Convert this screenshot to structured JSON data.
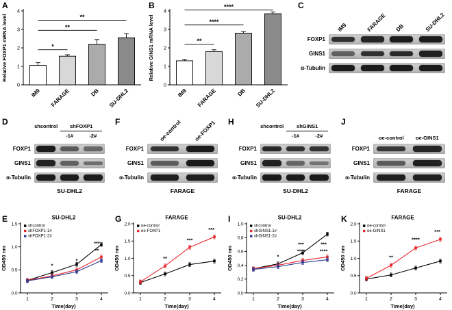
{
  "colors": {
    "red": "#e8262d",
    "blue": "#2b3990",
    "black": "#000000",
    "bar_outline": "#000000"
  },
  "panels": {
    "A": {
      "letter": "A"
    },
    "B": {
      "letter": "B"
    },
    "C": {
      "letter": "C"
    },
    "D": {
      "letter": "D"
    },
    "E": {
      "letter": "E"
    },
    "F": {
      "letter": "F"
    },
    "G": {
      "letter": "G"
    },
    "H": {
      "letter": "H"
    },
    "I": {
      "letter": "I"
    },
    "J": {
      "letter": "J"
    },
    "K": {
      "letter": "K"
    }
  },
  "blots": [
    {
      "id": "C",
      "header": "rotated",
      "columns": [
        "IM9",
        "FARAGE",
        "DB",
        "SU-DHL2"
      ],
      "rows": [
        {
          "label": "FOXP1",
          "bands": [
            0.8,
            0.88,
            0.95,
            0.95
          ]
        },
        {
          "label": "GINS1",
          "bands": [
            0.45,
            0.8,
            0.85,
            0.92
          ]
        },
        {
          "label": "α-Tubulin",
          "bands": [
            0.95,
            0.95,
            0.95,
            0.95
          ]
        }
      ],
      "bottom_label": ""
    },
    {
      "id": "D",
      "header": "grouped",
      "left_col": "shcontrol",
      "group_label": "shFOXP1",
      "sub_cols": [
        "-1#",
        "-2#"
      ],
      "rows": [
        {
          "label": "FOXP1",
          "bands": [
            0.95,
            0.5,
            0.4
          ]
        },
        {
          "label": "GINS1",
          "bands": [
            0.9,
            0.45,
            0.36
          ]
        },
        {
          "label": "α-Tubulin",
          "bands": [
            0.95,
            0.95,
            0.95
          ]
        }
      ],
      "bottom_label": "SU-DHL2"
    },
    {
      "id": "F",
      "header": "rotated",
      "columns": [
        "oe-control",
        "oe-FOXP1"
      ],
      "rows": [
        {
          "label": "FOXP1",
          "bands": [
            0.78,
            0.95
          ]
        },
        {
          "label": "GINS1",
          "bands": [
            0.5,
            0.95
          ]
        },
        {
          "label": "α-Tubulin",
          "bands": [
            0.92,
            0.92
          ]
        }
      ],
      "bottom_label": "FARAGE"
    },
    {
      "id": "H",
      "header": "grouped",
      "left_col": "shcontrol",
      "group_label": "shGINS1",
      "sub_cols": [
        "-1#",
        "-2#"
      ],
      "rows": [
        {
          "label": "FOXP1",
          "bands": [
            0.85,
            0.8,
            0.78
          ]
        },
        {
          "label": "GINS1",
          "bands": [
            0.9,
            0.42,
            0.32
          ]
        },
        {
          "label": "α-Tubulin",
          "bands": [
            0.95,
            0.95,
            0.95
          ]
        }
      ],
      "bottom_label": "SU-DHL2"
    },
    {
      "id": "J",
      "header": "plain",
      "columns": [
        "oe-control",
        "oe-GINS1"
      ],
      "rows": [
        {
          "label": "FOXP1",
          "bands": [
            0.75,
            0.88
          ]
        },
        {
          "label": "GINS1",
          "bands": [
            0.5,
            0.92
          ]
        },
        {
          "label": "α-Tubulin",
          "bands": [
            0.92,
            0.92
          ]
        }
      ],
      "bottom_label": "FARAGE"
    }
  ],
  "chart_data": [
    {
      "panel": "A",
      "type": "bar",
      "categories": [
        "IM9",
        "FARAGE",
        "DB",
        "SU-DHL2"
      ],
      "values": [
        1.05,
        1.55,
        2.2,
        2.55
      ],
      "errors": [
        0.15,
        0.08,
        0.25,
        0.22
      ],
      "ylabel": "Relative FOXP1 mRNA level",
      "ylim": [
        0,
        4
      ],
      "yticks": [
        "0",
        "1",
        "2",
        "3",
        "4"
      ],
      "bar_colors": [
        "#ffffff",
        "#d8d8d8",
        "#ababab",
        "#8a8a8a"
      ],
      "significance": [
        {
          "from": 0,
          "to": 1,
          "label": "*",
          "level": 1.9
        },
        {
          "from": 0,
          "to": 2,
          "label": "**",
          "level": 2.95
        },
        {
          "from": 0,
          "to": 3,
          "label": "**",
          "level": 3.5
        }
      ]
    },
    {
      "panel": "B",
      "type": "bar",
      "categories": [
        "IM9",
        "FARAGE",
        "DB",
        "SU-DHL2"
      ],
      "values": [
        1.3,
        1.8,
        2.8,
        3.85
      ],
      "errors": [
        0.07,
        0.1,
        0.08,
        0.1
      ],
      "ylabel": "Relative GINS1 mRNA level",
      "ylim": [
        0,
        4
      ],
      "yticks": [
        "0",
        "1",
        "2",
        "3",
        "4"
      ],
      "bar_colors": [
        "#ffffff",
        "#d8d8d8",
        "#ababab",
        "#8a8a8a"
      ],
      "significance": [
        {
          "from": 0,
          "to": 1,
          "label": "**",
          "level": 2.2
        },
        {
          "from": 0,
          "to": 2,
          "label": "****",
          "level": 3.25
        },
        {
          "from": 0,
          "to": 3,
          "label": "****",
          "level": 4.05
        }
      ]
    },
    {
      "panel": "E",
      "type": "line",
      "title": "SU-DHL2",
      "x": [
        1,
        2,
        3,
        4
      ],
      "xlabel": "Time(day)",
      "ylabel": "OD450 nm",
      "ylim": [
        0,
        1.5
      ],
      "yticks": [
        "0.0",
        "0.5",
        "1.0",
        "1.5"
      ],
      "series": [
        {
          "name": "shcontrol",
          "color": "#000000",
          "values": [
            0.27,
            0.44,
            0.62,
            1.05
          ]
        },
        {
          "name": "shFOXP1-1#",
          "color": "#e8262d",
          "values": [
            0.27,
            0.37,
            0.5,
            0.78
          ]
        },
        {
          "name": "shFOXP1-2#",
          "color": "#2b3990",
          "values": [
            0.26,
            0.35,
            0.46,
            0.7
          ]
        }
      ],
      "annotations": [
        {
          "x": 2,
          "y": 0.56,
          "text": "*",
          "color": "#e8262d"
        },
        {
          "x": 3,
          "y": 0.66,
          "text": "*",
          "color": "#e8262d"
        },
        {
          "x": 3.82,
          "y": 1.04,
          "text": "***",
          "color": "#e8262d"
        },
        {
          "x": 3.82,
          "y": 0.88,
          "text": "**",
          "color": "#2b3990"
        }
      ]
    },
    {
      "panel": "G",
      "type": "line",
      "title": "FARAGE",
      "x": [
        1,
        2,
        3,
        4
      ],
      "xlabel": "Time(day)",
      "ylabel": "OD450 nm",
      "ylim": [
        0,
        2
      ],
      "yticks": [
        "0.0",
        "0.5",
        "1.0",
        "1.5",
        "2.0"
      ],
      "series": [
        {
          "name": "oe-control",
          "color": "#000000",
          "values": [
            0.3,
            0.55,
            0.82,
            0.92
          ]
        },
        {
          "name": "oe-FOXP1",
          "color": "#e8262d",
          "values": [
            0.32,
            0.78,
            1.32,
            1.62
          ]
        }
      ],
      "annotations": [
        {
          "x": 2,
          "y": 0.95,
          "text": "**",
          "color": "#e8262d"
        },
        {
          "x": 3,
          "y": 1.48,
          "text": "***",
          "color": "#e8262d"
        },
        {
          "x": 3.88,
          "y": 1.78,
          "text": "***",
          "color": "#e8262d"
        }
      ]
    },
    {
      "panel": "I",
      "type": "line",
      "title": "SU-DHL2",
      "x": [
        1,
        2,
        3,
        4
      ],
      "xlabel": "Time(day)",
      "ylabel": "OD450 nm",
      "ylim": [
        0,
        1.0
      ],
      "yticks": [
        "0.0",
        "0.2",
        "0.4",
        "0.6",
        "0.8",
        "1.0"
      ],
      "series": [
        {
          "name": "shcontrol",
          "color": "#000000",
          "values": [
            0.35,
            0.42,
            0.58,
            0.85
          ]
        },
        {
          "name": "shGINS1-1#",
          "color": "#e8262d",
          "values": [
            0.35,
            0.4,
            0.47,
            0.52
          ]
        },
        {
          "name": "shGINS1-2#",
          "color": "#2b3990",
          "values": [
            0.34,
            0.38,
            0.44,
            0.48
          ]
        }
      ],
      "annotations": [
        {
          "x": 2,
          "y": 0.5,
          "text": "*",
          "color": "#e8262d"
        },
        {
          "x": 2.93,
          "y": 0.68,
          "text": "***",
          "color": "#e8262d"
        },
        {
          "x": 2.93,
          "y": 0.58,
          "text": "****",
          "color": "#2b3990"
        },
        {
          "x": 3.85,
          "y": 0.68,
          "text": "***",
          "color": "#e8262d"
        },
        {
          "x": 3.85,
          "y": 0.58,
          "text": "****",
          "color": "#2b3990"
        }
      ]
    },
    {
      "panel": "K",
      "type": "line",
      "title": "FARAGE",
      "x": [
        1,
        2,
        3,
        4
      ],
      "xlabel": "Time(day)",
      "ylabel": "OD450 nm",
      "ylim": [
        0,
        2
      ],
      "yticks": [
        "0.0",
        "0.5",
        "1.0",
        "1.5",
        "2.0"
      ],
      "series": [
        {
          "name": "oe-control",
          "color": "#000000",
          "values": [
            0.4,
            0.52,
            0.72,
            0.92
          ]
        },
        {
          "name": "oe-GINS1",
          "color": "#e8262d",
          "values": [
            0.42,
            0.8,
            1.3,
            1.55
          ]
        }
      ],
      "annotations": [
        {
          "x": 2,
          "y": 0.98,
          "text": "**",
          "color": "#e8262d"
        },
        {
          "x": 3,
          "y": 1.5,
          "text": "****",
          "color": "#e8262d"
        },
        {
          "x": 3.88,
          "y": 1.72,
          "text": "***",
          "color": "#e8262d"
        }
      ]
    }
  ]
}
